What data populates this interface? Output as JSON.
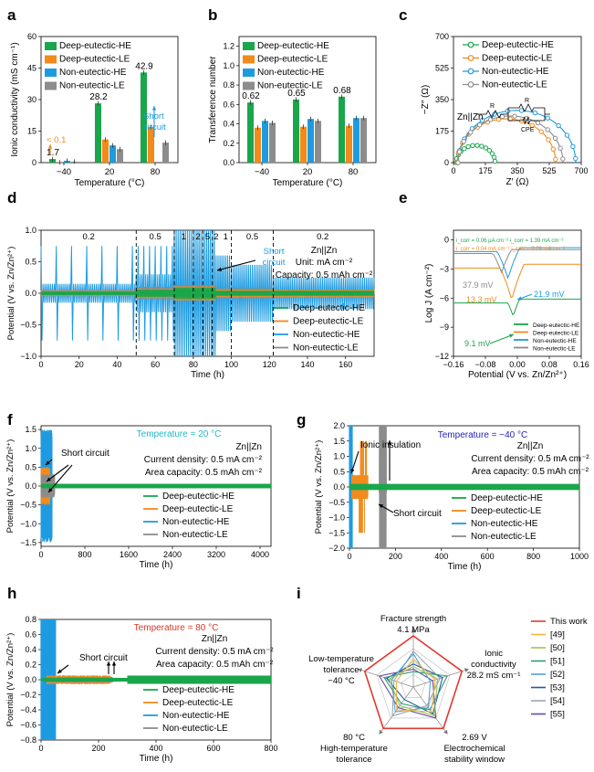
{
  "colors": {
    "deep_he": "#1aa64b",
    "deep_le": "#f28a1c",
    "non_he": "#1e9be0",
    "non_le": "#8c8c8c",
    "this_work": "#e03a2e",
    "ref49": "#f3b640",
    "ref50": "#9cc55a",
    "ref51": "#2e9a78",
    "ref52": "#4ea3d9",
    "ref53": "#1e5ba0",
    "ref54": "#9aa6b2",
    "ref55": "#6a48a8",
    "tmp20": "#20b8c4",
    "tmpm40": "#2323b8",
    "tmp80": "#d43a2a"
  },
  "legend4": [
    "Deep-eutectic-HE",
    "Deep-eutectic-LE",
    "Non-eutectic-HE",
    "Non-eutectic-LE"
  ],
  "chart_data": [
    {
      "panel": "a",
      "type": "bar",
      "ylabel": "Ionic conductivity (mS cm⁻¹)",
      "xlabel": "Temperature (°C)",
      "categories": [
        "−40",
        "20",
        "80"
      ],
      "ylim": [
        0,
        60
      ],
      "yticks": [
        0,
        15,
        30,
        45,
        60
      ],
      "series": [
        {
          "name": "Deep-eutectic-HE",
          "values": [
            1.7,
            28.2,
            42.9
          ]
        },
        {
          "name": "Deep-eutectic-LE",
          "values": [
            0.09,
            11.0,
            17.0
          ]
        },
        {
          "name": "Non-eutectic-HE",
          "values": [
            0.9,
            8.2,
            null
          ]
        },
        {
          "name": "Non-eutectic-LE",
          "values": [
            0.5,
            6.4,
            9.5
          ]
        }
      ],
      "value_labels": [
        "1.7",
        "28.2",
        "42.9"
      ],
      "annotations": [
        "< 0.1",
        "Short circuit"
      ]
    },
    {
      "panel": "b",
      "type": "bar",
      "ylabel": "Transference number",
      "xlabel": "Temperature (°C)",
      "categories": [
        "−40",
        "20",
        "80"
      ],
      "ylim": [
        0,
        1.3
      ],
      "yticks": [
        0.0,
        0.2,
        0.4,
        0.6,
        0.8,
        1.0,
        1.2
      ],
      "ytick_labels": [
        "0.0",
        "0.2",
        "0.4",
        "0.6",
        "0.8",
        "1.0",
        "1.2"
      ],
      "series": [
        {
          "name": "Deep-eutectic-HE",
          "values": [
            0.62,
            0.65,
            0.68
          ]
        },
        {
          "name": "Deep-eutectic-LE",
          "values": [
            0.36,
            0.37,
            0.38
          ]
        },
        {
          "name": "Non-eutectic-HE",
          "values": [
            0.43,
            0.45,
            0.46
          ]
        },
        {
          "name": "Non-eutectic-LE",
          "values": [
            0.41,
            0.43,
            0.46
          ]
        }
      ],
      "value_labels": [
        "0.62",
        "0.65",
        "0.68"
      ]
    },
    {
      "panel": "c",
      "type": "scatter",
      "ylabel": "−Z″ (Ω)",
      "xlabel": "Z′ (Ω)",
      "xlim": [
        0,
        700
      ],
      "ylim": [
        0,
        700
      ],
      "xticks": [
        0,
        175,
        350,
        525,
        700
      ],
      "yticks": [
        0,
        175,
        350,
        525,
        700
      ],
      "series": [
        {
          "name": "Deep-eutectic-HE",
          "semicircle": [
            15,
            228
          ]
        },
        {
          "name": "Deep-eutectic-LE",
          "semicircle": [
            20,
            560
          ]
        },
        {
          "name": "Non-eutectic-HE",
          "semicircle": [
            25,
            670
          ]
        },
        {
          "name": "Non-eutectic-LE",
          "semicircle": [
            25,
            600
          ]
        }
      ],
      "annotations": [
        "Zn||Zn",
        "R",
        "R",
        "CPE"
      ]
    },
    {
      "panel": "d",
      "type": "line",
      "ylabel": "Potential (V vs. Zn/Zn²⁺)",
      "xlabel": "Time (h)",
      "xlim": [
        0,
        175
      ],
      "ylim": [
        -1.0,
        1.0
      ],
      "xticks": [
        0,
        20,
        40,
        60,
        80,
        100,
        120,
        140,
        160
      ],
      "yticks": [
        -1.0,
        -0.5,
        0.0,
        0.5,
        1.0
      ],
      "ytick_labels": [
        "−1.0",
        "−0.5",
        "0.0",
        "0.5",
        "1.0"
      ],
      "dividers_h": [
        50,
        70,
        80,
        85,
        90,
        100,
        122
      ],
      "rate_labels": [
        {
          "text": "0.2",
          "x": 25
        },
        {
          "text": "0.5",
          "x": 60
        },
        {
          "text": "1",
          "x": 75
        },
        {
          "text": "2",
          "x": 82.5
        },
        {
          "text": "5",
          "x": 87.5
        },
        {
          "text": "2",
          "x": 92
        },
        {
          "text": "1",
          "x": 97
        },
        {
          "text": "0.5",
          "x": 111
        },
        {
          "text": "0.2",
          "x": 148
        }
      ],
      "annotations": [
        "Short circuit",
        "Zn||Zn",
        "Unit: mA cm⁻²",
        "Capacity: 0.5 mAh cm⁻²"
      ]
    },
    {
      "panel": "e",
      "type": "line",
      "ylabel": "Log J (A cm⁻²)",
      "xlabel": "Potential (V vs. Zn/Zn²⁺)",
      "xlim": [
        -0.16,
        0.16
      ],
      "ylim": [
        -12,
        1
      ],
      "xticks": [
        -0.16,
        -0.08,
        0.0,
        0.08,
        0.16
      ],
      "xtick_labels": [
        "−0.16",
        "−0.08",
        "0.00",
        "0.08",
        "0.16"
      ],
      "yticks": [
        -12,
        -9,
        -6,
        -3,
        0
      ],
      "ytick_labels": [
        "−12",
        "−9",
        "−6",
        "−3",
        "0"
      ],
      "exchange_lines": [
        "i_corr = 0.06 μA cm⁻²  i_corr = 1.39 mA cm⁻²",
        "i_corr = 0.04 mA cm⁻²  i_corr = 6.09 mA cm⁻²"
      ],
      "annotations": [
        "37.9 mV",
        "13.3 mV",
        "21.9 mV",
        "9.1 mV"
      ]
    },
    {
      "panel": "f",
      "type": "line",
      "ylabel": "Potential (V vs. Zn/Zn²⁺)",
      "xlabel": "Time (h)",
      "xlim": [
        0,
        4200
      ],
      "ylim": [
        -1.6,
        1.6
      ],
      "xticks": [
        0,
        800,
        1600,
        2400,
        3200,
        4000
      ],
      "yticks": [
        -1.5,
        -1.0,
        -0.5,
        0.0,
        0.5,
        1.0,
        1.5
      ],
      "ytick_labels": [
        "−1.5",
        "−1.0",
        "−0.5",
        "0.0",
        "0.5",
        "1.0",
        "1.5"
      ],
      "condition": "Temperature = 20 °C",
      "annotations": [
        "Short circuit",
        "Zn||Zn",
        "Current density: 0.5 mA cm⁻²",
        "Area capacity: 0.5 mAh cm⁻²"
      ]
    },
    {
      "panel": "g",
      "type": "line",
      "ylabel": "Potential (V vs. Zn/Zn²⁺)",
      "xlabel": "Time (h)",
      "xlim": [
        0,
        1000
      ],
      "ylim": [
        -2.0,
        2.0
      ],
      "xticks": [
        0,
        200,
        400,
        600,
        800,
        1000
      ],
      "yticks": [
        -2.0,
        -1.5,
        -1.0,
        -0.5,
        0.0,
        0.5,
        1.0,
        1.5,
        2.0
      ],
      "ytick_labels": [
        "−2.0",
        "−1.5",
        "−1.0",
        "−0.5",
        "0.0",
        "0.5",
        "1.0",
        "1.5",
        "2.0"
      ],
      "condition": "Temperature = −40 °C",
      "annotations": [
        "Ionic insulation",
        "Short circuit",
        "Zn||Zn",
        "Current density: 0.5 mA cm⁻²",
        "Area capacity: 0.5 mAh cm⁻²"
      ]
    },
    {
      "panel": "h",
      "type": "line",
      "ylabel": "Potential (V vs. Zn/Zn²⁺)",
      "xlabel": "Time (h)",
      "xlim": [
        0,
        800
      ],
      "ylim": [
        -0.8,
        0.8
      ],
      "xticks": [
        0,
        200,
        400,
        600,
        800
      ],
      "yticks": [
        -0.8,
        -0.6,
        -0.4,
        -0.2,
        0.0,
        0.2,
        0.4,
        0.6,
        0.8
      ],
      "ytick_labels": [
        "−0.8",
        "−0.6",
        "−0.4",
        "−0.2",
        "0.0",
        "0.2",
        "0.4",
        "0.6",
        "0.8"
      ],
      "condition": "Temperature = 80 °C",
      "annotations": [
        "Short circuit",
        "Zn||Zn",
        "Current density: 0.5 mA cm⁻²",
        "Area capacity: 0.5 mAh cm⁻²"
      ]
    },
    {
      "panel": "i",
      "type": "radar",
      "axes": [
        {
          "label": [
            "Fracture strength",
            "4.1 MPa"
          ]
        },
        {
          "label": [
            "Ionic",
            "conductivity",
            "28.2 mS cm⁻¹"
          ]
        },
        {
          "label": [
            "2.69 V",
            "Electrochemical",
            "stability window"
          ]
        },
        {
          "label": [
            "80 °C",
            "High-temperature",
            "tolerance"
          ]
        },
        {
          "label": [
            "Low-temperature",
            "tolerance",
            "−40 °C"
          ]
        }
      ],
      "series": [
        {
          "name": "This work",
          "values": [
            1.0,
            1.0,
            1.0,
            1.0,
            1.0
          ]
        },
        {
          "name": "[49]",
          "values": [
            0.55,
            0.45,
            0.6,
            0.55,
            0.35
          ]
        },
        {
          "name": "[50]",
          "values": [
            0.4,
            0.5,
            0.7,
            0.45,
            0.5
          ]
        },
        {
          "name": "[51]",
          "values": [
            0.3,
            0.7,
            0.55,
            0.4,
            0.6
          ]
        },
        {
          "name": "[52]",
          "values": [
            0.65,
            0.35,
            0.5,
            0.6,
            0.45
          ]
        },
        {
          "name": "[53]",
          "values": [
            0.45,
            0.6,
            0.65,
            0.3,
            0.55
          ]
        },
        {
          "name": "[54]",
          "values": [
            0.7,
            0.55,
            0.45,
            0.7,
            0.4
          ]
        },
        {
          "name": "[55]",
          "values": [
            0.35,
            0.4,
            0.75,
            0.5,
            0.7
          ]
        }
      ]
    }
  ]
}
